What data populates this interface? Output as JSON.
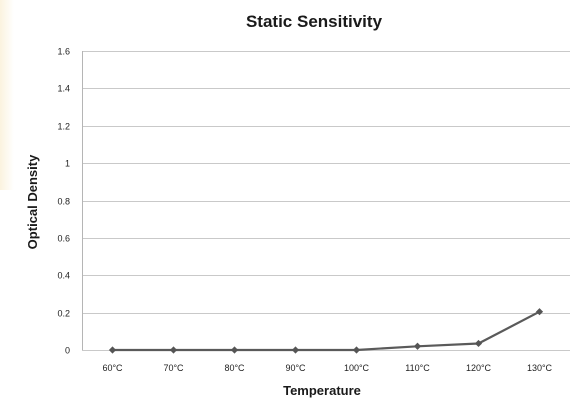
{
  "chart_data": {
    "type": "line",
    "title": "Static Sensitivity",
    "xlabel": "Temperature",
    "ylabel": "Optical Density",
    "categories": [
      "60°C",
      "70°C",
      "80°C",
      "90°C",
      "100°C",
      "110°C",
      "120°C",
      "130°C"
    ],
    "series": [
      {
        "name": "",
        "values": [
          0,
          0,
          0,
          0,
          0,
          0.02,
          0.035,
          0.205
        ]
      }
    ],
    "ylim": [
      0,
      1.6
    ],
    "yticks": [
      0,
      0.2,
      0.4,
      0.6,
      0.8,
      1,
      1.2,
      1.4,
      1.6
    ],
    "ytick_labels": [
      "0",
      "0.2",
      "0.4",
      "0.6",
      "0.8",
      "1",
      "1.2",
      "1.4",
      "1.6"
    ],
    "grid": true,
    "legend": "none",
    "colors": {
      "line": "#5a5a5a",
      "marker": "#555555",
      "grid": "#c9c9c9"
    }
  }
}
